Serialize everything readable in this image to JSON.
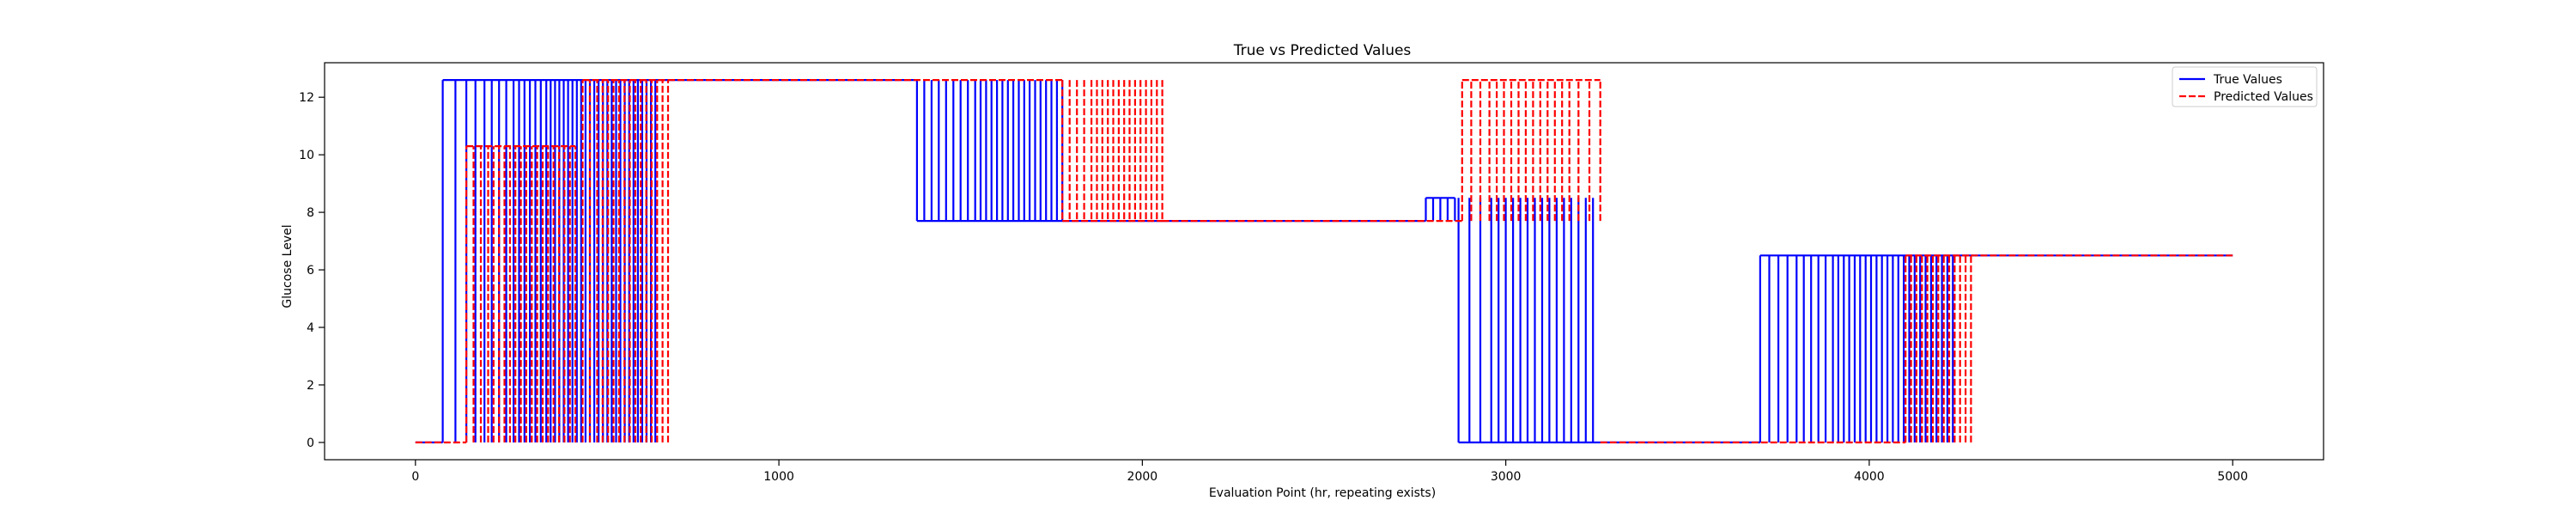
{
  "chart_data": {
    "type": "line",
    "title": "True vs Predicted Values",
    "xlabel": "Evaluation Point (hr, repeating exists)",
    "ylabel": "Glucose Level",
    "xlim": [
      -250,
      5250
    ],
    "ylim": [
      -0.6,
      13.2
    ],
    "xticks": [
      0,
      1000,
      2000,
      3000,
      4000,
      5000
    ],
    "yticks": [
      0,
      2,
      4,
      6,
      8,
      10,
      12
    ],
    "grid": false,
    "legend_position": "top-right",
    "series": [
      {
        "name": "True Values",
        "color": "#0000ff",
        "dash": "solid",
        "segments": [
          {
            "type": "flat",
            "x0": 0,
            "x1": 75,
            "y": 0
          },
          {
            "type": "spikes",
            "base": 0,
            "peak": 12.6,
            "xs": [
              75,
              110,
              140,
              165,
              190,
              210,
              230,
              250,
              270,
              285,
              300,
              315,
              330,
              345,
              360,
              372,
              384,
              396,
              408,
              420,
              432,
              444,
              456,
              468,
              480,
              492,
              504,
              516,
              528,
              540,
              552,
              564,
              576,
              588,
              600,
              612,
              624,
              636,
              648,
              660
            ]
          },
          {
            "type": "flat",
            "x0": 660,
            "x1": 1380,
            "y": 12.6
          },
          {
            "type": "spikes",
            "base": 12.6,
            "peak": 7.7,
            "xs": [
              1380,
              1400,
              1420,
              1440,
              1460,
              1480,
              1500,
              1520,
              1540,
              1555,
              1570,
              1585,
              1600,
              1615,
              1630,
              1645,
              1660,
              1675,
              1690,
              1705,
              1720,
              1735,
              1750,
              1765,
              1780
            ]
          },
          {
            "type": "flat",
            "x0": 1780,
            "x1": 2780,
            "y": 7.7
          },
          {
            "type": "spikes",
            "base": 7.7,
            "peak": 8.5,
            "xs": [
              2780,
              2800,
              2820,
              2840,
              2860
            ]
          },
          {
            "type": "spikes",
            "base": 8.5,
            "peak": 0,
            "xs": [
              2870,
              2900,
              2930,
              2960,
              2980,
              3000,
              3020,
              3040,
              3060,
              3080,
              3100,
              3120,
              3140,
              3160,
              3180,
              3200,
              3220,
              3240
            ]
          },
          {
            "type": "flat",
            "x0": 3240,
            "x1": 3700,
            "y": 0
          },
          {
            "type": "spikes",
            "base": 0,
            "peak": 6.5,
            "xs": [
              3700,
              3725,
              3750,
              3775,
              3800,
              3820,
              3840,
              3860,
              3880,
              3900,
              3915,
              3930,
              3945,
              3960,
              3975,
              3990,
              4005,
              4020,
              4035,
              4050,
              4065,
              4080,
              4095,
              4110,
              4125,
              4140,
              4155,
              4170,
              4185,
              4200,
              4215,
              4230
            ]
          },
          {
            "type": "flat",
            "x0": 4230,
            "x1": 5000,
            "y": 6.5
          }
        ]
      },
      {
        "name": "Predicted Values",
        "color": "#ff0000",
        "dash": "dashed",
        "segments": [
          {
            "type": "flat",
            "x0": 0,
            "x1": 140,
            "y": 0
          },
          {
            "type": "spikes",
            "base": 0,
            "peak": 10.3,
            "xs": [
              140,
              160,
              180,
              200,
              215,
              230,
              245,
              260,
              275,
              290,
              305,
              320,
              335,
              350,
              365,
              380,
              395,
              410,
              425,
              440
            ]
          },
          {
            "type": "spikes",
            "base": 0,
            "peak": 12.6,
            "xs": [
              460,
              480,
              500,
              515,
              530,
              545,
              560,
              575,
              590,
              605,
              620,
              635,
              650,
              665,
              680,
              695
            ]
          },
          {
            "type": "flat",
            "x0": 695,
            "x1": 1780,
            "y": 12.6
          },
          {
            "type": "spikes",
            "base": 12.6,
            "peak": 7.7,
            "xs": [
              1780,
              1800,
              1820,
              1840,
              1860,
              1875,
              1890,
              1905,
              1920,
              1935,
              1950,
              1965,
              1980,
              1995,
              2010,
              2025,
              2040,
              2055
            ]
          },
          {
            "type": "flat",
            "x0": 2055,
            "x1": 2880,
            "y": 7.7
          },
          {
            "type": "spikes",
            "base": 7.7,
            "peak": 12.6,
            "xs": [
              2880,
              2905,
              2930,
              2955,
              2975,
              2995,
              3015,
              3035,
              3055,
              3075,
              3095,
              3115,
              3135,
              3155,
              3175,
              3200,
              3230,
              3260
            ]
          },
          {
            "type": "flat",
            "x0": 3260,
            "x1": 4100,
            "y": 0
          },
          {
            "type": "spikes",
            "base": 0,
            "peak": 6.5,
            "xs": [
              4100,
              4115,
              4130,
              4145,
              4160,
              4175,
              4190,
              4205,
              4220,
              4235,
              4250,
              4265,
              4280
            ]
          },
          {
            "type": "flat",
            "x0": 4280,
            "x1": 5000,
            "y": 6.5
          }
        ]
      }
    ]
  }
}
